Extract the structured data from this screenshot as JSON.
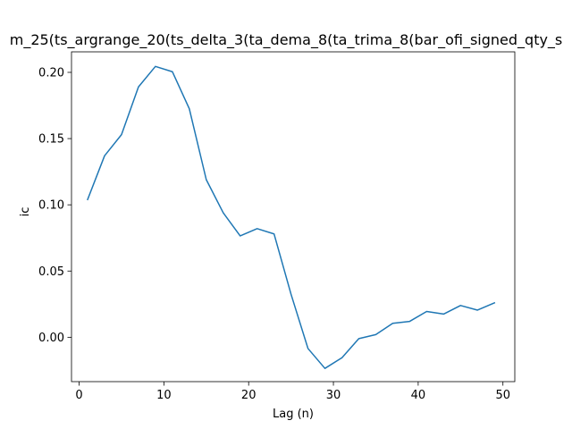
{
  "chart_data": {
    "type": "line",
    "title": "m_25(ts_argrange_20(ts_delta_3(ta_dema_8(ta_trima_8(bar_ofi_signed_qty_s",
    "xlabel": "Lag (n)",
    "ylabel": "ic",
    "xlim": [
      -0.9,
      51.4
    ],
    "ylim": [
      -0.0335,
      0.2155
    ],
    "xticks": [
      0,
      10,
      20,
      30,
      40,
      50
    ],
    "xtick_labels": [
      "0",
      "10",
      "20",
      "30",
      "40",
      "50"
    ],
    "yticks": [
      0.0,
      0.05,
      0.1,
      0.15,
      0.2
    ],
    "ytick_labels": [
      "0.00",
      "0.05",
      "0.10",
      "0.15",
      "0.20"
    ],
    "grid": false,
    "line_color": "#1f77b4",
    "series": [
      {
        "x": [
          1,
          3,
          5,
          7,
          9,
          11,
          13,
          15,
          17,
          19,
          21,
          23,
          25,
          27,
          29,
          31,
          33,
          35,
          37,
          39,
          41,
          43,
          45,
          47,
          49
        ],
        "values": [
          0.104,
          0.137,
          0.153,
          0.189,
          0.2045,
          0.2005,
          0.1725,
          0.119,
          0.094,
          0.0765,
          0.082,
          0.078,
          0.0325,
          -0.0085,
          -0.0235,
          -0.0155,
          -0.001,
          0.002,
          0.0105,
          0.012,
          0.0195,
          0.0175,
          0.024,
          0.0205,
          0.026
        ]
      }
    ]
  }
}
